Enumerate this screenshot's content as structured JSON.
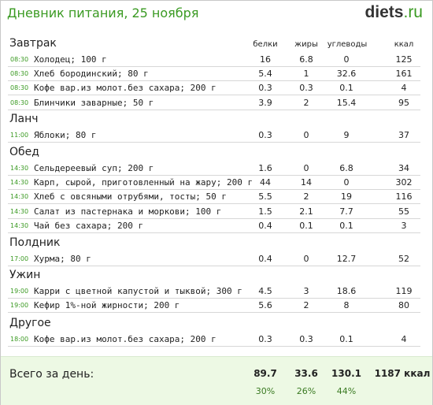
{
  "title": "Дневник питания, 25 ноября",
  "logo": {
    "part1": "diets",
    "part2": ".ru"
  },
  "columns": [
    "белки",
    "жиры",
    "углеводы",
    "ккал"
  ],
  "meals": [
    {
      "name": "Завтрак",
      "items": [
        {
          "time": "08:30",
          "food": "Холодец; 100 г",
          "p": "16",
          "f": "6.8",
          "c": "0",
          "kcal": "125"
        },
        {
          "time": "08:30",
          "food": "Хлеб бородинский; 80 г",
          "p": "5.4",
          "f": "1",
          "c": "32.6",
          "kcal": "161"
        },
        {
          "time": "08:30",
          "food": "Кофе вар.из молот.без сахара; 200 г",
          "p": "0.3",
          "f": "0.3",
          "c": "0.1",
          "kcal": "4"
        },
        {
          "time": "08:30",
          "food": "Блинчики заварные; 50 г",
          "p": "3.9",
          "f": "2",
          "c": "15.4",
          "kcal": "95"
        }
      ]
    },
    {
      "name": "Ланч",
      "items": [
        {
          "time": "11:00",
          "food": "Яблоки; 80 г",
          "p": "0.3",
          "f": "0",
          "c": "9",
          "kcal": "37"
        }
      ]
    },
    {
      "name": "Обед",
      "items": [
        {
          "time": "14:30",
          "food": "Сельдереевый суп; 200 г",
          "p": "1.6",
          "f": "0",
          "c": "6.8",
          "kcal": "34"
        },
        {
          "time": "14:30",
          "food": "Карп, сырой, приготовленный на жару; 200 г",
          "p": "44",
          "f": "14",
          "c": "0",
          "kcal": "302"
        },
        {
          "time": "14:30",
          "food": "Хлеб с овсяными отрубями, тосты; 50 г",
          "p": "5.5",
          "f": "2",
          "c": "19",
          "kcal": "116"
        },
        {
          "time": "14:30",
          "food": "Салат из пастернака и моркови; 100 г",
          "p": "1.5",
          "f": "2.1",
          "c": "7.7",
          "kcal": "55"
        },
        {
          "time": "14:30",
          "food": "Чай без сахара; 200 г",
          "p": "0.4",
          "f": "0.1",
          "c": "0.1",
          "kcal": "3"
        }
      ]
    },
    {
      "name": "Полдник",
      "items": [
        {
          "time": "17:00",
          "food": "Хурма; 80 г",
          "p": "0.4",
          "f": "0",
          "c": "12.7",
          "kcal": "52"
        }
      ]
    },
    {
      "name": "Ужин",
      "items": [
        {
          "time": "19:00",
          "food": "Карри с цветной капустой и тыквой; 300 г",
          "p": "4.5",
          "f": "3",
          "c": "18.6",
          "kcal": "119"
        },
        {
          "time": "19:00",
          "food": "Кефир 1%-ной жирности; 200 г",
          "p": "5.6",
          "f": "2",
          "c": "8",
          "kcal": "80"
        }
      ]
    },
    {
      "name": "Другое",
      "items": [
        {
          "time": "18:00",
          "food": "Кофе вар.из молот.без сахара; 200 г",
          "p": "0.3",
          "f": "0.3",
          "c": "0.1",
          "kcal": "4"
        }
      ]
    }
  ],
  "totals": {
    "label": "Всего за день:",
    "p": "89.7",
    "f": "33.6",
    "c": "130.1",
    "kcal": "1187 ккал",
    "p_pct": "30%",
    "f_pct": "26%",
    "c_pct": "44%"
  }
}
